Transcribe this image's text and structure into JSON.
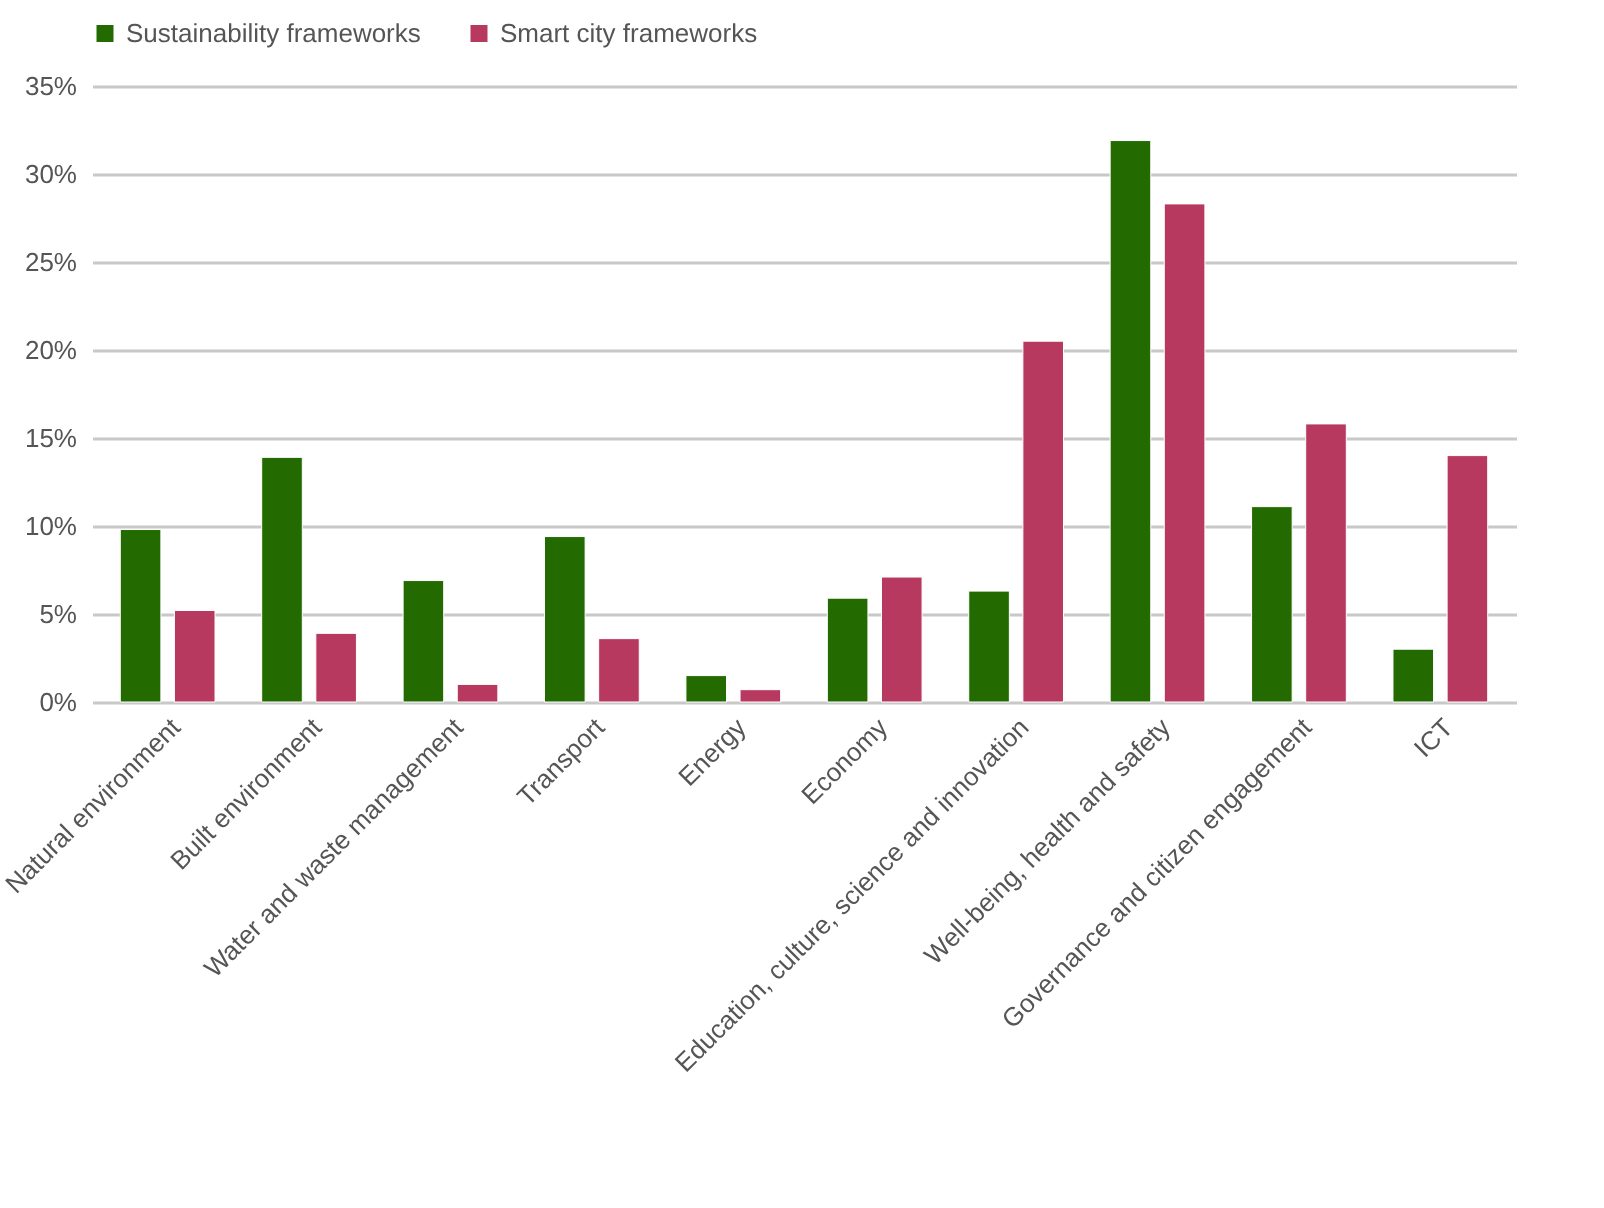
{
  "chart_data": {
    "type": "bar",
    "categories": [
      "Natural environment",
      "Built environment",
      "Water and waste management",
      "Transport",
      "Energy",
      "Economy",
      "Education, culture, science and innovation",
      "Well-being, health and safety",
      "Governance and citizen engagement",
      "ICT"
    ],
    "series": [
      {
        "name": "Sustainability frameworks",
        "color": "#236b00",
        "values": [
          9.8,
          13.9,
          6.9,
          9.4,
          1.5,
          5.9,
          6.3,
          31.9,
          11.1,
          3.0
        ]
      },
      {
        "name": "Smart city frameworks",
        "color": "#b8395f",
        "values": [
          5.2,
          3.9,
          1.0,
          3.6,
          0.7,
          7.1,
          20.5,
          28.3,
          15.8,
          14.0
        ]
      }
    ],
    "ylim": [
      0,
      35
    ],
    "yticks": [
      {
        "value": 0,
        "label": "0%"
      },
      {
        "value": 5,
        "label": "5%"
      },
      {
        "value": 10,
        "label": "10%"
      },
      {
        "value": 15,
        "label": "15%"
      },
      {
        "value": 20,
        "label": "20%"
      },
      {
        "value": 25,
        "label": "25%"
      },
      {
        "value": 30,
        "label": "30%"
      },
      {
        "value": 35,
        "label": "35%"
      }
    ],
    "grid": "y",
    "legend": "top"
  }
}
